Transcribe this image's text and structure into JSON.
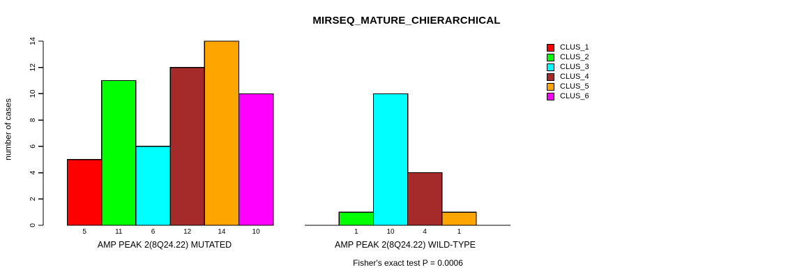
{
  "page": {
    "background": "#FFFFFF"
  },
  "chart_data": {
    "type": "bar",
    "title": "MIRSEQ_MATURE_CHIERARCHICAL",
    "ylabel": "number of cases",
    "ylim": [
      0,
      14
    ],
    "yticks": [
      0,
      2,
      4,
      6,
      8,
      10,
      12,
      14
    ],
    "grid": false,
    "legend_position": "right",
    "axis_color": "#000000",
    "text_color": "#000000",
    "legend": [
      {
        "label": "CLUS_1",
        "color": "#FF0000"
      },
      {
        "label": "CLUS_2",
        "color": "#00FF00"
      },
      {
        "label": "CLUS_3",
        "color": "#00FFFF"
      },
      {
        "label": "CLUS_4",
        "color": "#A52A2A"
      },
      {
        "label": "CLUS_5",
        "color": "#FFA500"
      },
      {
        "label": "CLUS_6",
        "color": "#FF00FF"
      }
    ],
    "groups": [
      {
        "xlabel": "AMP PEAK 2(8Q24.22) MUTATED",
        "categories": [
          "CLUS_1",
          "CLUS_2",
          "CLUS_3",
          "CLUS_4",
          "CLUS_5",
          "CLUS_6"
        ],
        "values": [
          5,
          11,
          6,
          12,
          14,
          10
        ],
        "bar_labels": [
          "5",
          "11",
          "6",
          "12",
          "14",
          "10"
        ]
      },
      {
        "xlabel": "AMP PEAK 2(8Q24.22) WILD-TYPE",
        "categories": [
          "CLUS_1",
          "CLUS_2",
          "CLUS_3",
          "CLUS_4",
          "CLUS_5",
          "CLUS_6"
        ],
        "values": [
          0,
          1,
          10,
          4,
          1,
          0
        ],
        "bar_labels": [
          "",
          "1",
          "10",
          "4",
          "1",
          ""
        ]
      }
    ],
    "annotation": "Fisher's exact test P = 0.0006"
  }
}
